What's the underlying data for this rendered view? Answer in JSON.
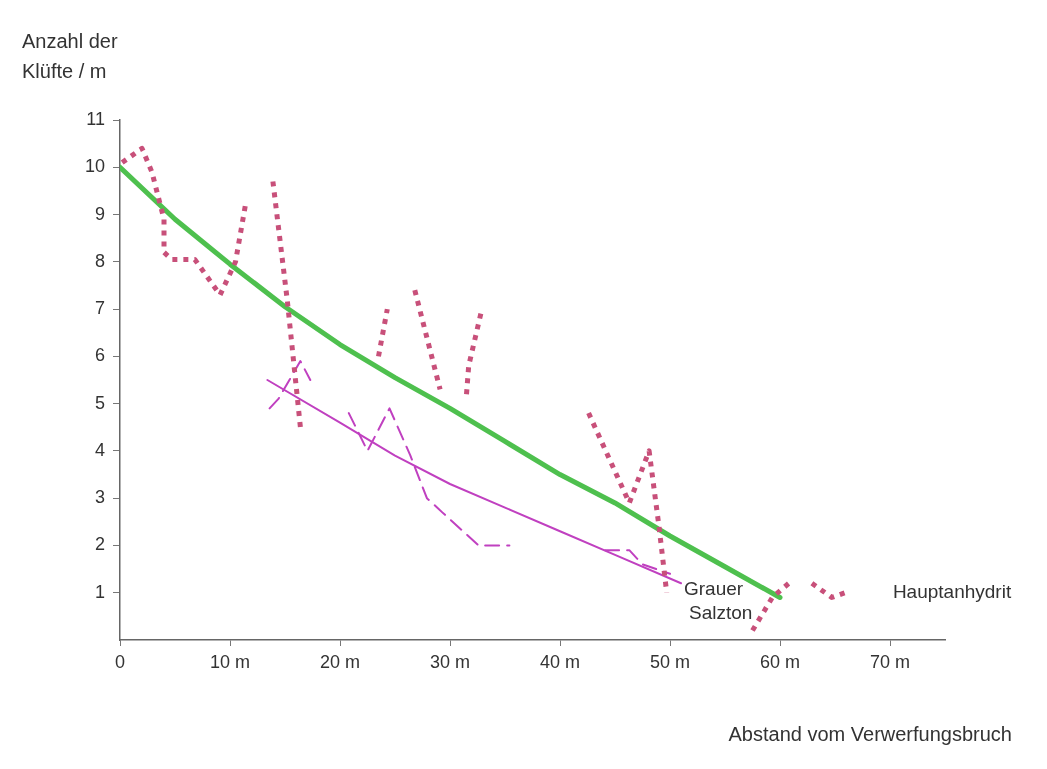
{
  "chart_data": {
    "type": "line",
    "xlabel": "Abstand vom Verwerfungsbruch",
    "ylabel": "Anzahl der Klüfte / m",
    "xlim": [
      0,
      75
    ],
    "ylim": [
      0,
      11
    ],
    "xticks": [
      0,
      {
        "value": 10,
        "label": "10 m"
      },
      {
        "value": 20,
        "label": "20 m"
      },
      {
        "value": 30,
        "label": "30 m"
      },
      {
        "value": 40,
        "label": "40 m"
      },
      {
        "value": 50,
        "label": "50 m"
      },
      {
        "value": 60,
        "label": "60 m"
      },
      {
        "value": 70,
        "label": "70 m"
      }
    ],
    "yticks": [
      1,
      2,
      3,
      4,
      5,
      6,
      7,
      8,
      9,
      10,
      11
    ],
    "grid": false,
    "legend": false,
    "marker": "none",
    "series": [
      {
        "name": "Hauptanhydrit",
        "color": "#c8507a",
        "line_style": "dotted",
        "x": [
          0.2,
          2.0,
          2.9,
          4.0,
          4.0,
          4.7,
          6.8,
          9.1,
          10.5,
          11.4,
          12.5,
          13.9,
          15.2,
          16.4,
          20,
          23.5,
          24.3,
          25.5,
          26.8,
          29.1,
          30.3,
          31.5,
          31.7,
          32.3,
          32.9,
          40,
          42.6,
          46.3,
          48.1,
          49.0,
          49.7,
          53,
          57.5,
          59.3,
          60.8,
          62,
          62.9,
          64.7,
          65.9
        ],
        "values": [
          10.1,
          10.4,
          9.9,
          8.9,
          8.2,
          8.05,
          8.05,
          7.3,
          8.0,
          9.2,
          null,
          9.7,
          7.2,
          4.5,
          null,
          6.0,
          7.0,
          null,
          7.4,
          5.3,
          null,
          5.2,
          5.8,
          6.4,
          7.0,
          null,
          4.8,
          2.9,
          4.0,
          2.4,
          1.0,
          null,
          0.2,
          0.9,
          1.2,
          null,
          1.2,
          0.9,
          1.0
        ]
      },
      {
        "name": "Grauer Salzton",
        "color": "#c040c0",
        "line_style": "dashed",
        "x": [
          13.6,
          14.4,
          16.4,
          17.3,
          19,
          20.8,
          22.5,
          24.5,
          26.4,
          27.9,
          29.3,
          32.6,
          35.4,
          40,
          44.1,
          46.3,
          47.5,
          50.0
        ],
        "values": [
          4.9,
          5.1,
          5.9,
          5.5,
          null,
          4.8,
          4.0,
          4.9,
          3.9,
          3.0,
          2.7,
          2.0,
          2.0,
          null,
          1.9,
          1.9,
          1.6,
          1.4
        ]
      },
      {
        "color": "#c040c0",
        "line_style": "solid",
        "x": [
          13.4,
          20,
          25,
          30,
          35,
          40,
          45,
          51
        ],
        "values": [
          5.5,
          4.6,
          3.9,
          3.3,
          2.8,
          2.3,
          1.8,
          1.2
        ]
      },
      {
        "color": "#4ec04e",
        "line_style": "solid",
        "x": [
          0,
          5,
          10,
          15,
          20,
          25,
          30,
          35,
          40,
          45,
          50,
          55,
          60
        ],
        "values": [
          10,
          8.9,
          7.95,
          7.05,
          6.25,
          5.55,
          4.9,
          4.2,
          3.5,
          2.9,
          2.2,
          1.55,
          0.9
        ]
      }
    ]
  }
}
